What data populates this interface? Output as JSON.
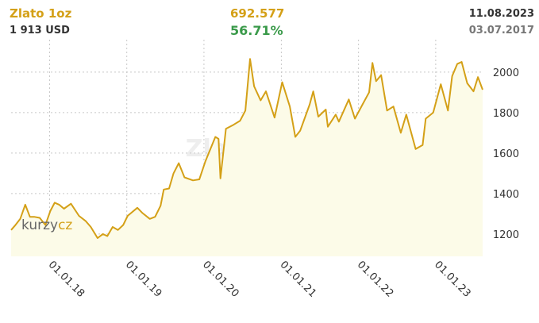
{
  "header": {
    "title": "Zlato 1oz",
    "price": "1 913 USD",
    "change": "692.577",
    "change_pct": "56.71%",
    "date_end": "11.08.2023",
    "date_start": "03.07.2017"
  },
  "colors": {
    "line": "#d4a017",
    "area": "#fcfbe8",
    "grid": "#c8c8c8",
    "title": "#d4a017",
    "positive": "#3a9a4a"
  },
  "watermark": "Zlato 1oz",
  "logo": {
    "part1": "kurzy",
    "part2": "cz"
  },
  "chart_data": {
    "type": "area",
    "title": "",
    "xlabel": "",
    "ylabel": "",
    "x_ticks": [
      "01.01.18",
      "01.01.19",
      "01.01.20",
      "01.01.21",
      "01.01.22",
      "01.01.23"
    ],
    "y_ticks": [
      1200,
      1400,
      1600,
      1800,
      2000
    ],
    "xlim": [
      "2017-07-03",
      "2023-08-11"
    ],
    "ylim": [
      1090,
      2160
    ],
    "grid": true,
    "y_axis_position": "right",
    "series": [
      {
        "values": [
          [
            "2017-07-03",
            1220
          ],
          [
            "2017-07-20",
            1240
          ],
          [
            "2017-08-15",
            1275
          ],
          [
            "2017-09-08",
            1345
          ],
          [
            "2017-09-30",
            1285
          ],
          [
            "2017-10-20",
            1285
          ],
          [
            "2017-11-15",
            1280
          ],
          [
            "2017-12-12",
            1245
          ],
          [
            "2018-01-05",
            1315
          ],
          [
            "2018-01-25",
            1355
          ],
          [
            "2018-02-15",
            1345
          ],
          [
            "2018-03-10",
            1325
          ],
          [
            "2018-04-12",
            1350
          ],
          [
            "2018-05-20",
            1290
          ],
          [
            "2018-06-20",
            1265
          ],
          [
            "2018-07-15",
            1235
          ],
          [
            "2018-08-16",
            1180
          ],
          [
            "2018-09-10",
            1200
          ],
          [
            "2018-10-01",
            1190
          ],
          [
            "2018-10-26",
            1235
          ],
          [
            "2018-11-20",
            1220
          ],
          [
            "2018-12-15",
            1245
          ],
          [
            "2019-01-05",
            1290
          ],
          [
            "2019-02-20",
            1330
          ],
          [
            "2019-03-15",
            1305
          ],
          [
            "2019-04-20",
            1275
          ],
          [
            "2019-05-15",
            1285
          ],
          [
            "2019-06-10",
            1340
          ],
          [
            "2019-06-25",
            1420
          ],
          [
            "2019-07-20",
            1425
          ],
          [
            "2019-08-10",
            1500
          ],
          [
            "2019-09-04",
            1550
          ],
          [
            "2019-10-01",
            1480
          ],
          [
            "2019-11-10",
            1465
          ],
          [
            "2019-12-10",
            1470
          ],
          [
            "2020-01-08",
            1560
          ],
          [
            "2020-02-24",
            1680
          ],
          [
            "2020-03-10",
            1670
          ],
          [
            "2020-03-19",
            1475
          ],
          [
            "2020-04-14",
            1720
          ],
          [
            "2020-05-20",
            1740
          ],
          [
            "2020-06-20",
            1760
          ],
          [
            "2020-07-15",
            1810
          ],
          [
            "2020-08-06",
            2065
          ],
          [
            "2020-08-25",
            1930
          ],
          [
            "2020-09-25",
            1860
          ],
          [
            "2020-10-20",
            1905
          ],
          [
            "2020-11-30",
            1775
          ],
          [
            "2021-01-05",
            1950
          ],
          [
            "2021-02-10",
            1830
          ],
          [
            "2021-03-08",
            1680
          ],
          [
            "2021-03-31",
            1710
          ],
          [
            "2021-05-15",
            1840
          ],
          [
            "2021-06-01",
            1905
          ],
          [
            "2021-06-25",
            1780
          ],
          [
            "2021-07-30",
            1815
          ],
          [
            "2021-08-09",
            1730
          ],
          [
            "2021-09-15",
            1790
          ],
          [
            "2021-09-30",
            1755
          ],
          [
            "2021-11-16",
            1865
          ],
          [
            "2021-12-15",
            1770
          ],
          [
            "2022-01-20",
            1840
          ],
          [
            "2022-02-20",
            1900
          ],
          [
            "2022-03-08",
            2045
          ],
          [
            "2022-03-25",
            1955
          ],
          [
            "2022-04-18",
            1985
          ],
          [
            "2022-05-16",
            1810
          ],
          [
            "2022-06-15",
            1830
          ],
          [
            "2022-07-20",
            1700
          ],
          [
            "2022-08-15",
            1790
          ],
          [
            "2022-09-28",
            1620
          ],
          [
            "2022-10-31",
            1640
          ],
          [
            "2022-11-15",
            1770
          ],
          [
            "2022-12-20",
            1800
          ],
          [
            "2023-01-25",
            1940
          ],
          [
            "2023-02-28",
            1810
          ],
          [
            "2023-03-20",
            1980
          ],
          [
            "2023-04-13",
            2040
          ],
          [
            "2023-05-04",
            2050
          ],
          [
            "2023-05-30",
            1945
          ],
          [
            "2023-06-29",
            1905
          ],
          [
            "2023-07-20",
            1975
          ],
          [
            "2023-08-11",
            1913
          ]
        ]
      }
    ]
  }
}
